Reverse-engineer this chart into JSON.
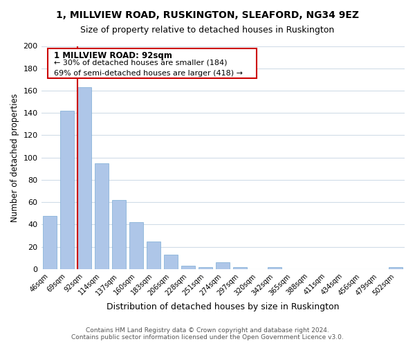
{
  "title1": "1, MILLVIEW ROAD, RUSKINGTON, SLEAFORD, NG34 9EZ",
  "title2": "Size of property relative to detached houses in Ruskington",
  "xlabel": "Distribution of detached houses by size in Ruskington",
  "ylabel": "Number of detached properties",
  "bar_labels": [
    "46sqm",
    "69sqm",
    "92sqm",
    "114sqm",
    "137sqm",
    "160sqm",
    "183sqm",
    "206sqm",
    "228sqm",
    "251sqm",
    "274sqm",
    "297sqm",
    "320sqm",
    "342sqm",
    "365sqm",
    "388sqm",
    "411sqm",
    "434sqm",
    "456sqm",
    "479sqm",
    "502sqm"
  ],
  "bar_heights": [
    48,
    142,
    163,
    95,
    62,
    42,
    25,
    13,
    3,
    2,
    6,
    2,
    0,
    2,
    0,
    0,
    0,
    0,
    0,
    0,
    2
  ],
  "bar_color": "#aec6e8",
  "bar_edge_color": "#7aaad4",
  "highlight_bar_index": 2,
  "highlight_line_color": "#cc0000",
  "annotation_title": "1 MILLVIEW ROAD: 92sqm",
  "annotation_line1": "← 30% of detached houses are smaller (184)",
  "annotation_line2": "69% of semi-detached houses are larger (418) →",
  "annotation_box_color": "#ffffff",
  "annotation_box_edge": "#cc0000",
  "ylim": [
    0,
    200
  ],
  "yticks": [
    0,
    20,
    40,
    60,
    80,
    100,
    120,
    140,
    160,
    180,
    200
  ],
  "footer1": "Contains HM Land Registry data © Crown copyright and database right 2024.",
  "footer2": "Contains public sector information licensed under the Open Government Licence v3.0.",
  "background_color": "#ffffff",
  "grid_color": "#d0dce8"
}
